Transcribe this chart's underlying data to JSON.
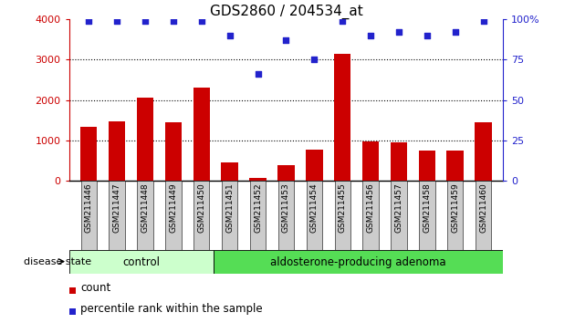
{
  "title": "GDS2860 / 204534_at",
  "categories": [
    "GSM211446",
    "GSM211447",
    "GSM211448",
    "GSM211449",
    "GSM211450",
    "GSM211451",
    "GSM211452",
    "GSM211453",
    "GSM211454",
    "GSM211455",
    "GSM211456",
    "GSM211457",
    "GSM211458",
    "GSM211459",
    "GSM211460"
  ],
  "count_values": [
    1340,
    1480,
    2070,
    1460,
    2310,
    450,
    80,
    390,
    770,
    3150,
    970,
    960,
    760,
    760,
    1460
  ],
  "percentile_values": [
    99,
    99,
    99,
    99,
    99,
    90,
    66,
    87,
    75,
    99,
    90,
    92,
    90,
    92,
    99
  ],
  "left_ylim": [
    0,
    4000
  ],
  "left_yticks": [
    0,
    1000,
    2000,
    3000,
    4000
  ],
  "right_ylim": [
    0,
    100
  ],
  "right_yticks": [
    0,
    25,
    50,
    75,
    100
  ],
  "bar_color": "#cc0000",
  "dot_color": "#2222cc",
  "bar_width": 0.6,
  "dot_size": 22,
  "control_label": "control",
  "adenoma_label": "aldosterone-producing adenoma",
  "disease_state_label": "disease state",
  "control_color": "#ccffcc",
  "adenoma_color": "#55dd55",
  "legend_count_label": "count",
  "legend_percentile_label": "percentile rank within the sample",
  "bg_color": "#ffffff",
  "axis_label_color_left": "#cc0000",
  "axis_label_color_right": "#2222cc",
  "title_fontsize": 11,
  "tick_fontsize": 8,
  "label_fontsize": 8.5,
  "xtick_fontsize": 6.5,
  "xtick_gray": "#cccccc"
}
